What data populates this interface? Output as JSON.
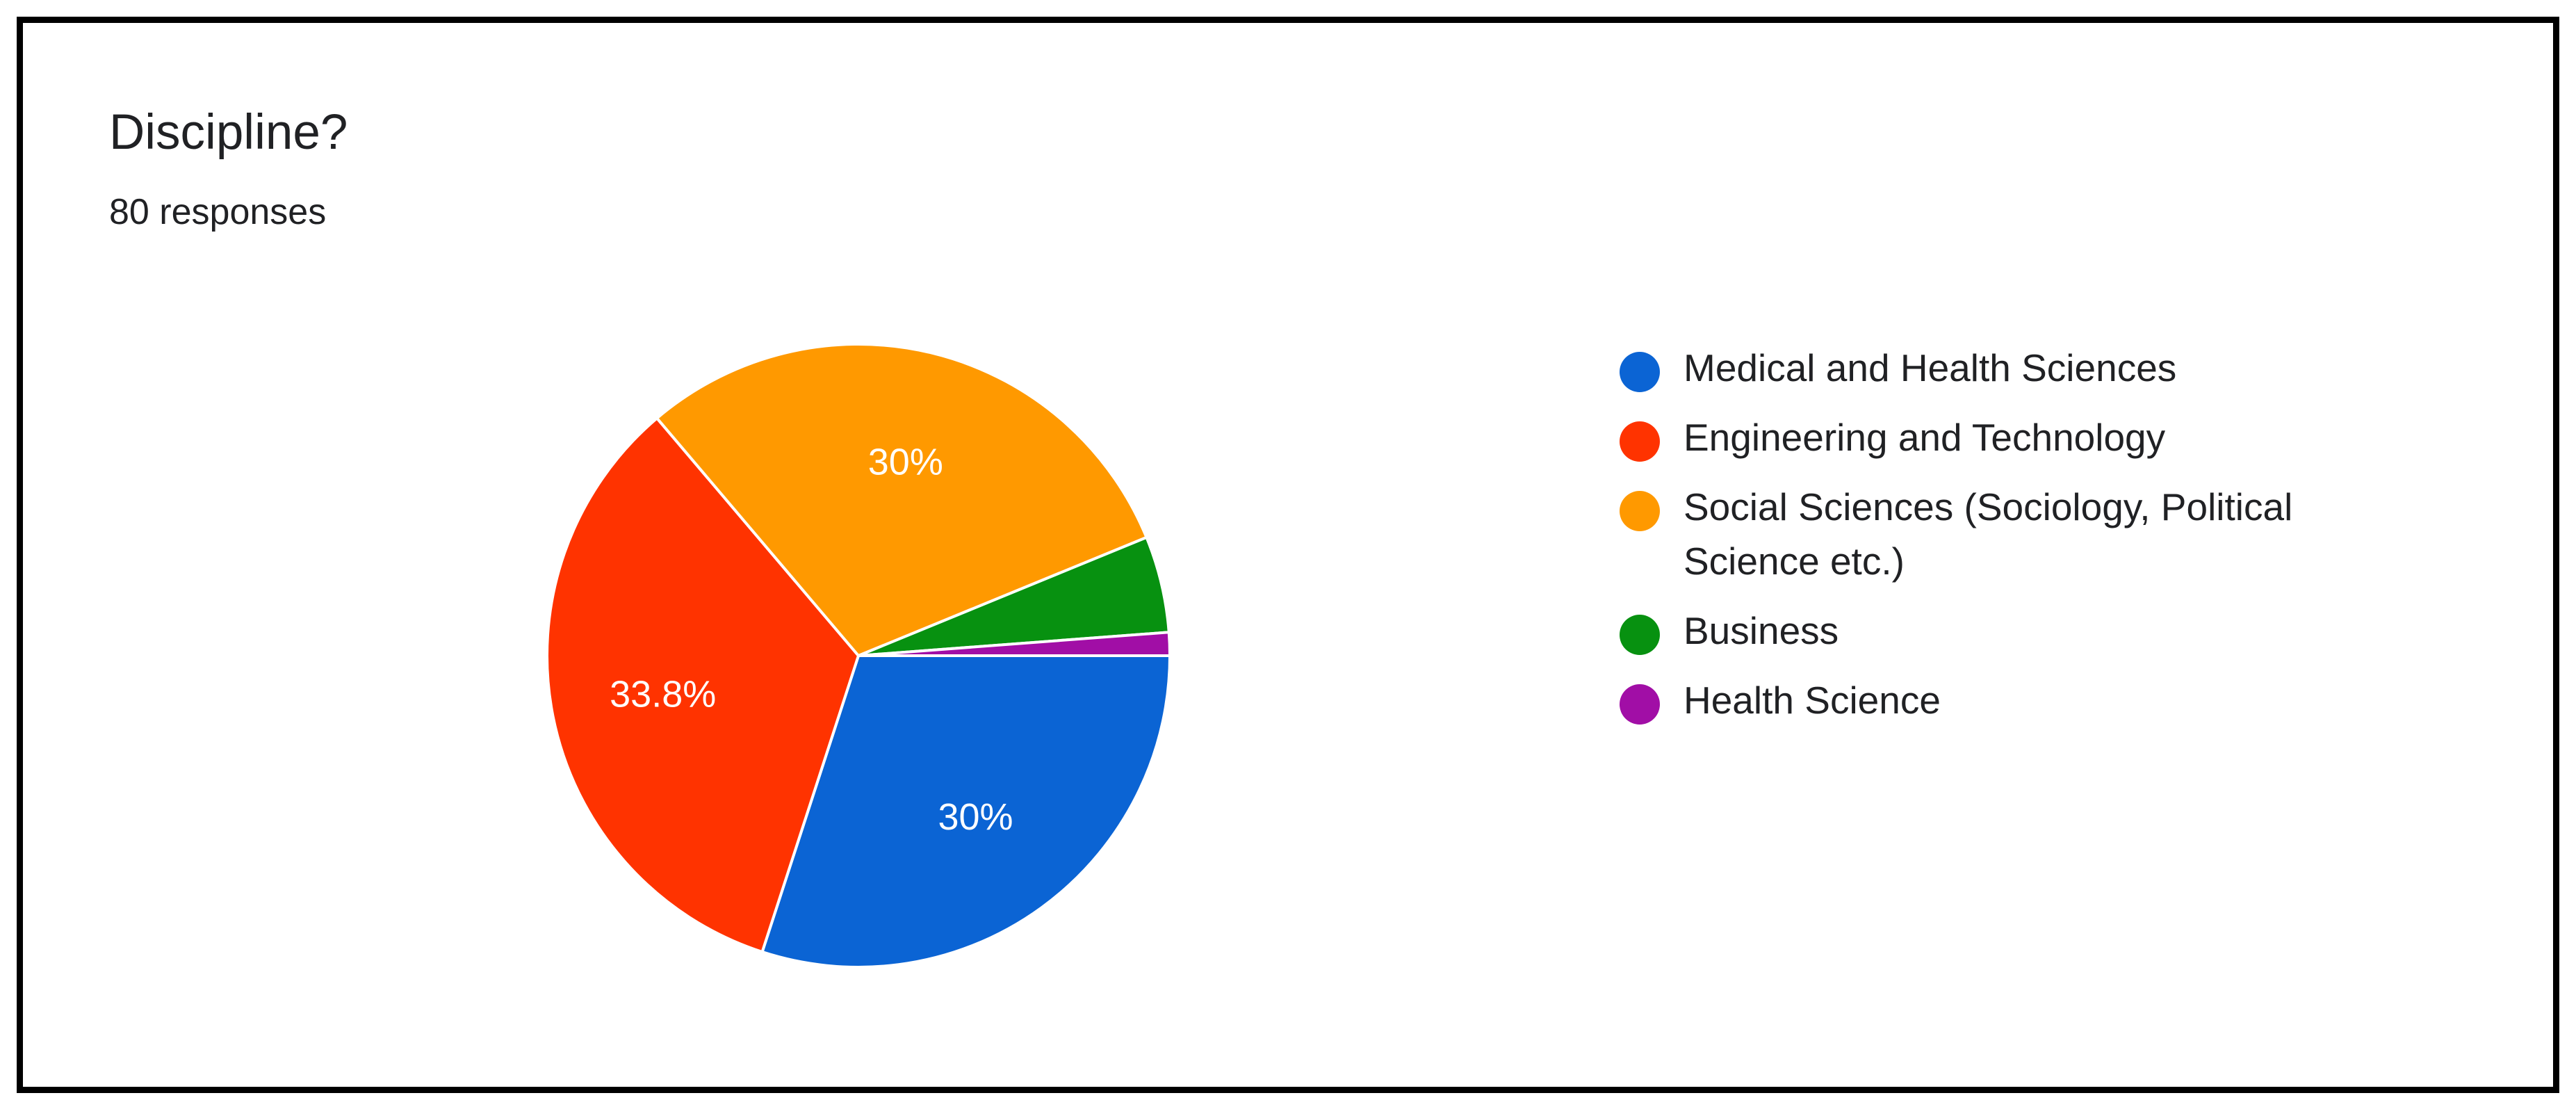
{
  "chart_data": {
    "type": "pie",
    "title": "Discipline?",
    "subtitle": "80 responses",
    "legend_position": "right",
    "categories": [
      "Medical and Health Sciences",
      "Engineering and Technology",
      "Social Sciences (Sociology, Political Science etc.)",
      "Business",
      "Health Science"
    ],
    "values": [
      30,
      33.8,
      30,
      5,
      1.2
    ],
    "data_labels": [
      "30%",
      "33.8%",
      "30%",
      "",
      ""
    ],
    "colors": [
      "#0B64D4",
      "#FF3300",
      "#FF9900",
      "#079110",
      "#A10EA6"
    ]
  }
}
